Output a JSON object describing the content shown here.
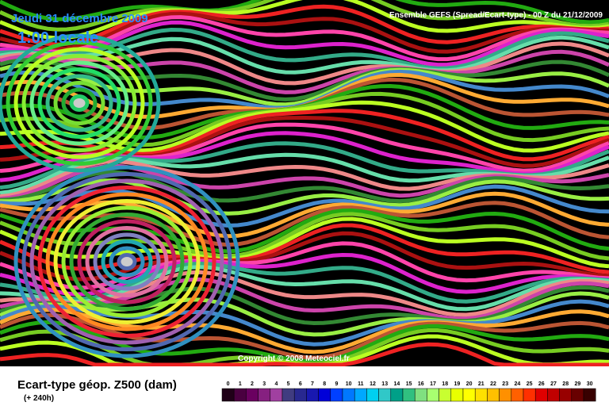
{
  "header": {
    "date": "Jeudi 31 décembre 2009",
    "time": "1:00 locale",
    "model": "Ensemble GEFS (Spread/Ecart-type) - 00 Z du 21/12/2009"
  },
  "copyright": "Copyright © 2008 Meteociel.fr",
  "footer": {
    "title": "Ecart-type géop. Z500 (dam)",
    "lead": "(+ 240h)"
  },
  "legend": {
    "labels": [
      0,
      1,
      2,
      3,
      4,
      5,
      6,
      7,
      8,
      9,
      10,
      11,
      12,
      13,
      14,
      15,
      16,
      17,
      18,
      19,
      20,
      21,
      22,
      23,
      24,
      25,
      26,
      27,
      28,
      29,
      30
    ],
    "colors": [
      "#200018",
      "#4a0040",
      "#6a0060",
      "#862080",
      "#a040a0",
      "#403c80",
      "#282890",
      "#1818b0",
      "#0000d8",
      "#0040ff",
      "#0078ff",
      "#00a8ff",
      "#00d0f0",
      "#30c8c8",
      "#00a088",
      "#30c080",
      "#80e080",
      "#a8ff70",
      "#c8ff30",
      "#e8ff00",
      "#ffff00",
      "#ffe000",
      "#ffc000",
      "#ff9000",
      "#ff6000",
      "#ff3000",
      "#e00000",
      "#c00000",
      "#980000",
      "#680000",
      "#380000"
    ]
  }
}
